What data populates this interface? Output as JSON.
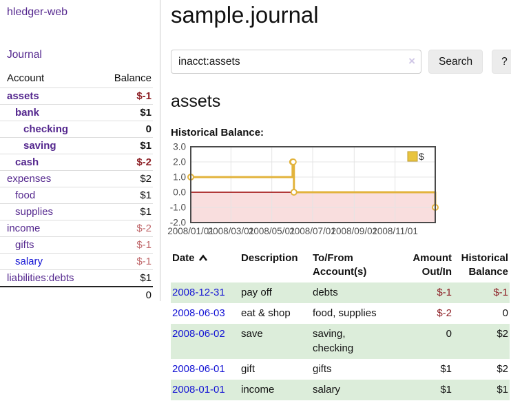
{
  "app": {
    "title": "hledger-web",
    "nav_journal": "Journal"
  },
  "colors": {
    "link_purple": "#54278e",
    "link_blue": "#1414d4",
    "negative_strong": "#8d2026",
    "negative_soft": "#c0696c",
    "row_stripe_green": "#dcedda",
    "chart_gold": "#e2b33c"
  },
  "sidebar": {
    "header": {
      "account": "Account",
      "balance": "Balance"
    },
    "accounts": [
      {
        "name": "assets",
        "indent": 0,
        "bold": true,
        "link": "purple",
        "balance": "$-1",
        "balance_style": "neg-strong"
      },
      {
        "name": "bank",
        "indent": 1,
        "bold": true,
        "link": "purple",
        "balance": "$1",
        "balance_style": "normal"
      },
      {
        "name": "checking",
        "indent": 2,
        "bold": true,
        "link": "purple",
        "balance": "0",
        "balance_style": "normal"
      },
      {
        "name": "saving",
        "indent": 2,
        "bold": true,
        "link": "purple",
        "balance": "$1",
        "balance_style": "normal"
      },
      {
        "name": "cash",
        "indent": 1,
        "bold": true,
        "link": "purple",
        "balance": "$-2",
        "balance_style": "neg-strong"
      },
      {
        "name": "expenses",
        "indent": 0,
        "bold": false,
        "link": "purple",
        "balance": "$2",
        "balance_style": "normal"
      },
      {
        "name": "food",
        "indent": 1,
        "bold": false,
        "link": "purple",
        "balance": "$1",
        "balance_style": "normal"
      },
      {
        "name": "supplies",
        "indent": 1,
        "bold": false,
        "link": "purple",
        "balance": "$1",
        "balance_style": "normal"
      },
      {
        "name": "income",
        "indent": 0,
        "bold": false,
        "link": "purple",
        "balance": "$-2",
        "balance_style": "neg-soft"
      },
      {
        "name": "gifts",
        "indent": 1,
        "bold": false,
        "link": "purple",
        "balance": "$-1",
        "balance_style": "neg-soft"
      },
      {
        "name": "salary",
        "indent": 1,
        "bold": false,
        "link": "blue",
        "balance": "$-1",
        "balance_style": "neg-soft"
      },
      {
        "name": "liabilities:debts",
        "indent": 0,
        "bold": false,
        "link": "purple",
        "balance": "$1",
        "balance_style": "normal"
      }
    ],
    "total": "0"
  },
  "main": {
    "title": "sample.journal",
    "search": {
      "value": "inacct:assets",
      "clear_icon": "×",
      "search_button": "Search",
      "help_button": "?"
    },
    "account_heading": "assets",
    "chart_label": "Historical Balance:"
  },
  "chart_data": {
    "type": "line",
    "style": "step-after",
    "title": "Historical Balance",
    "series": [
      {
        "name": "$",
        "color": "#e2b33c",
        "points": [
          [
            "2008-01-01",
            1
          ],
          [
            "2008-06-01",
            2
          ],
          [
            "2008-06-02",
            2
          ],
          [
            "2008-06-03",
            0
          ],
          [
            "2008-12-31",
            -1
          ]
        ]
      }
    ],
    "x_range": [
      "2008-01-01",
      "2008-12-31"
    ],
    "x_ticks": [
      "2008/01/01",
      "2008/03/01",
      "2008/05/01",
      "2008/07/01",
      "2008/09/01",
      "2008/11/01"
    ],
    "ylim": [
      -2,
      3
    ],
    "y_tick_step": 1,
    "grid": true,
    "negative_fill": "#f9dede",
    "zero_line_color": "#990000",
    "legend": {
      "label": "$",
      "position": "top-right"
    }
  },
  "table": {
    "headers": [
      {
        "label": "Date",
        "align": "left",
        "sorted": true
      },
      {
        "label": "Description",
        "align": "left"
      },
      {
        "label": "To/From\nAccount(s)",
        "align": "left"
      },
      {
        "label": "Amount\nOut/In",
        "align": "right"
      },
      {
        "label": "Historical\nBalance",
        "align": "right"
      }
    ],
    "rows": [
      {
        "date": "2008-12-31",
        "description": "pay off",
        "accounts": "debts",
        "amount": "$-1",
        "amount_style": "neg-strong",
        "balance": "$-1",
        "balance_style": "neg-strong"
      },
      {
        "date": "2008-06-03",
        "description": "eat & shop",
        "accounts": "food, supplies",
        "amount": "$-2",
        "amount_style": "neg-strong",
        "balance": "0",
        "balance_style": "normal"
      },
      {
        "date": "2008-06-02",
        "description": "save",
        "accounts": "saving,\nchecking",
        "amount": "0",
        "amount_style": "normal",
        "balance": "$2",
        "balance_style": "normal"
      },
      {
        "date": "2008-06-01",
        "description": "gift",
        "accounts": "gifts",
        "amount": "$1",
        "amount_style": "normal",
        "balance": "$2",
        "balance_style": "normal"
      },
      {
        "date": "2008-01-01",
        "description": "income",
        "accounts": "salary",
        "amount": "$1",
        "amount_style": "normal",
        "balance": "$1",
        "balance_style": "normal"
      }
    ]
  }
}
